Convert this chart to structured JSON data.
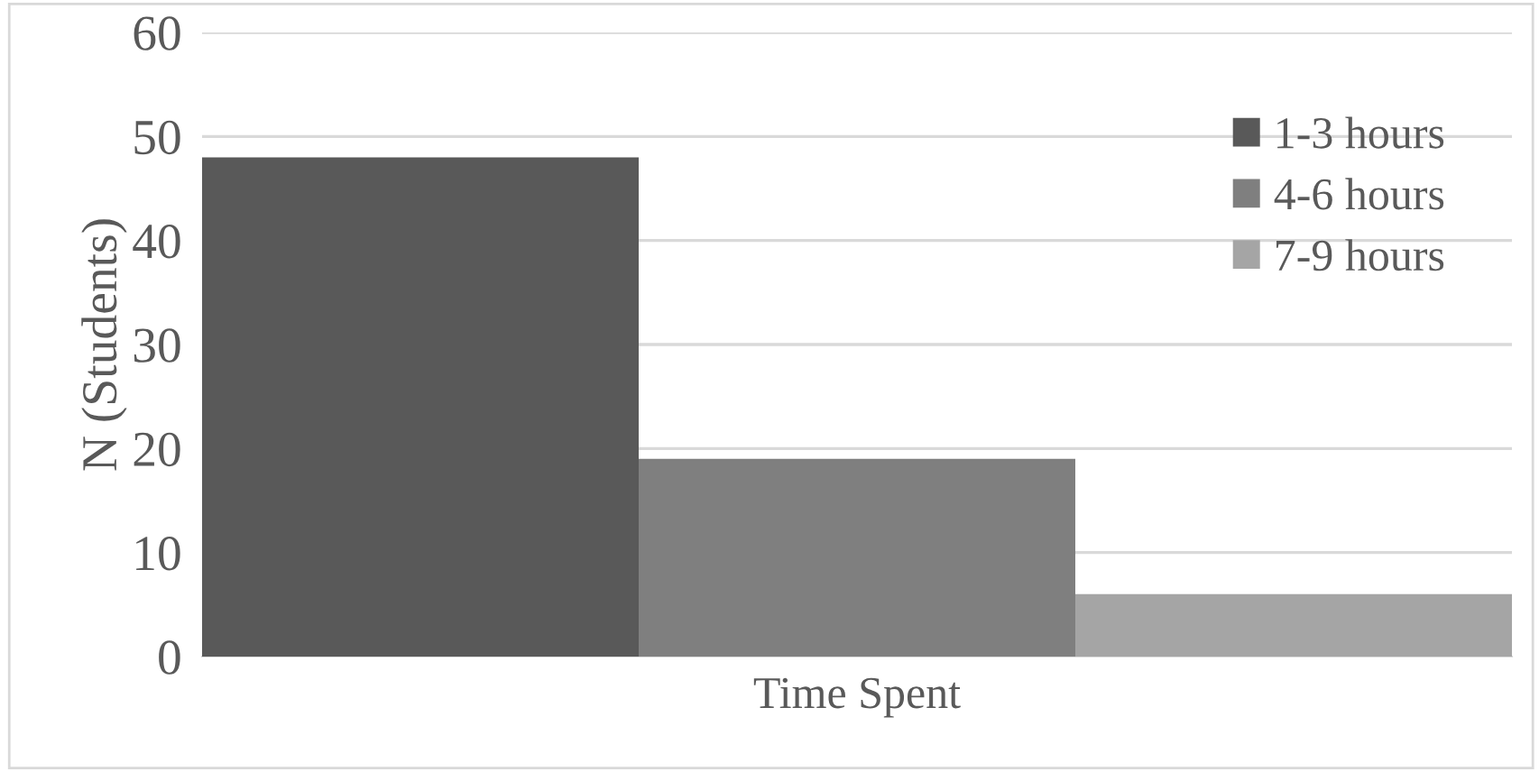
{
  "chart_data": {
    "type": "bar",
    "categories": [
      "Time Spent"
    ],
    "ylabel": "N (Students)",
    "series": [
      {
        "name": "1-3 hours",
        "color": "#595959",
        "values": [
          48
        ]
      },
      {
        "name": "4-6 hours",
        "color": "#7f7f7f",
        "values": [
          19
        ]
      },
      {
        "name": "7-9 hours",
        "color": "#a5a5a5",
        "values": [
          6
        ]
      }
    ],
    "ylim": [
      0,
      60
    ],
    "yticks": [
      0,
      10,
      20,
      30,
      40,
      50,
      60
    ],
    "grid": "y",
    "legend": "top right"
  }
}
